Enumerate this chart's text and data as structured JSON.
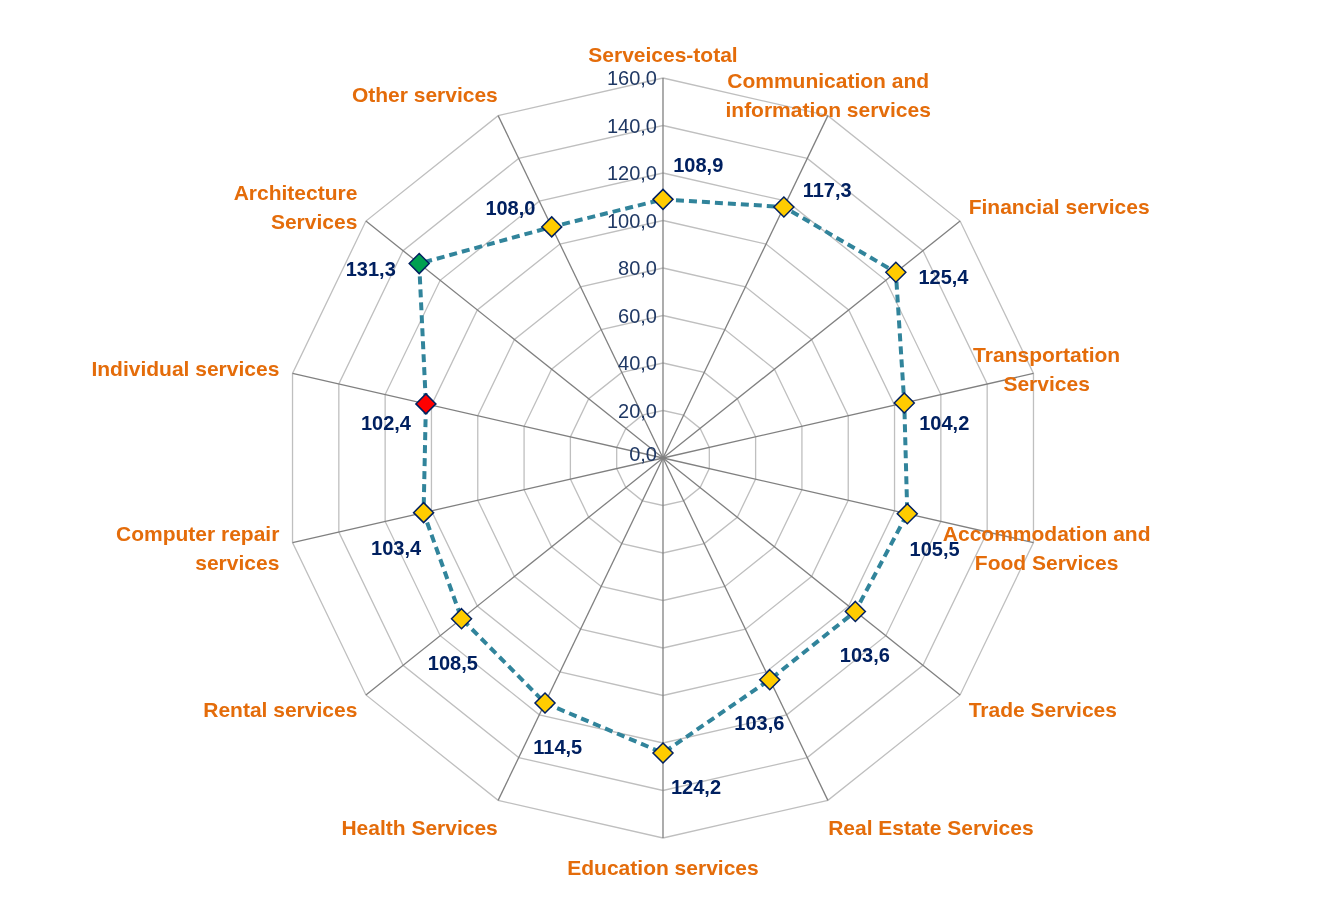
{
  "chart_data": {
    "type": "radar",
    "categories": [
      "Serveices-total",
      "Communication and information services",
      "Financial services",
      "Transportation Services",
      "Accommodation and Food Services",
      "Trade Services",
      "Real Estate Services",
      "Education services",
      "Health Services",
      "Rental services",
      "Computer repair services",
      "Individual services",
      "Architecture Services",
      "Other services"
    ],
    "series": [
      {
        "color": "#31849b",
        "values": [
          108.9,
          117.3,
          125.4,
          104.2,
          105.5,
          103.6,
          103.6,
          124.2,
          114.5,
          108.5,
          103.4,
          102.4,
          131.3,
          108.0
        ],
        "colors": [
          "#ffcc00",
          "#ffcc00",
          "#ffcc00",
          "#ffcc00",
          "#ffcc00",
          "#ffcc00",
          "#ffcc00",
          "#ffcc00",
          "#ffcc00",
          "#ffcc00",
          "#ffcc00",
          "#ff0000",
          "#00a050",
          "#ffcc00"
        ],
        "value_labels": [
          "108,9",
          "117,3",
          "125,4",
          "104,2",
          "105,5",
          "103,6",
          "103,6",
          "124,2",
          "114,5",
          "108,5",
          "103,4",
          "102,4",
          "131,3",
          "108,0"
        ]
      }
    ],
    "ylim": [
      0,
      160
    ],
    "yticks": [
      {
        "value": 0,
        "label": "0,0"
      },
      {
        "value": 20,
        "label": "20,0"
      },
      {
        "value": 40,
        "label": "40,0"
      },
      {
        "value": 60,
        "label": "60,0"
      },
      {
        "value": 80,
        "label": "80,0"
      },
      {
        "value": 100,
        "label": "100,0"
      },
      {
        "value": 120,
        "label": "120,0"
      },
      {
        "value": 140,
        "label": "140,0"
      },
      {
        "value": 160,
        "label": "160,0"
      }
    ],
    "grid": true,
    "marker": "diamond",
    "line_style": "dashed"
  }
}
